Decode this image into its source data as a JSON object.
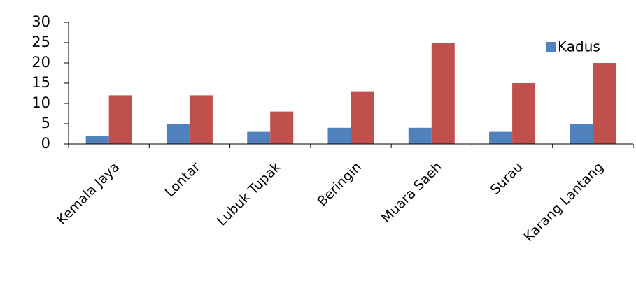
{
  "chart_data": {
    "type": "bar",
    "categories": [
      "Kemala Jaya",
      "Lontar",
      "Lubuk Tupak",
      "Beringin",
      "Muara Saeh",
      "Surau",
      "Karang Lantang"
    ],
    "series": [
      {
        "name": "Kadus",
        "color": "#4f81bd",
        "values": [
          2,
          5,
          3,
          4,
          4,
          3,
          5
        ]
      },
      {
        "color": "#c0504d",
        "values": [
          12,
          12,
          8,
          13,
          25,
          15,
          20
        ]
      }
    ],
    "ylim": [
      0,
      30
    ],
    "yticks": [
      0,
      5,
      10,
      15,
      20,
      25,
      30
    ],
    "grid": false,
    "legend": "right"
  }
}
